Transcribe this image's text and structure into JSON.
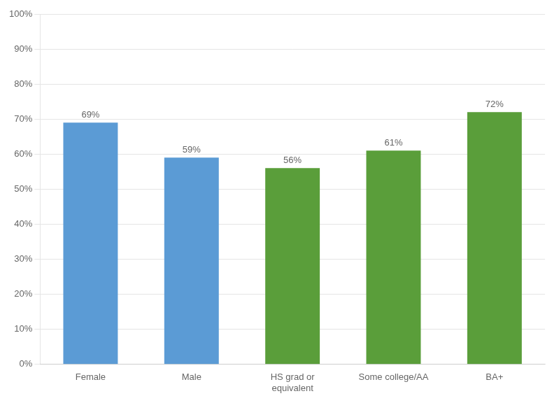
{
  "chart_data": {
    "type": "bar",
    "categories": [
      "Female",
      "Male",
      "HS grad or\nequivalent",
      "Some college/AA",
      "BA+"
    ],
    "values": [
      69,
      59,
      56,
      61,
      72
    ],
    "value_labels": [
      "69%",
      "59%",
      "56%",
      "61%",
      "72%"
    ],
    "colors": [
      "#5b9bd5",
      "#5b9bd5",
      "#5a9e3a",
      "#5a9e3a",
      "#5a9e3a"
    ],
    "data_labels": true,
    "ylim": [
      0,
      100
    ],
    "yticks": [
      {
        "value": 0,
        "label": "0%"
      },
      {
        "value": 10,
        "label": "10%"
      },
      {
        "value": 20,
        "label": "20%"
      },
      {
        "value": 30,
        "label": "30%"
      },
      {
        "value": 40,
        "label": "40%"
      },
      {
        "value": 50,
        "label": "50%"
      },
      {
        "value": 60,
        "label": "60%"
      },
      {
        "value": 70,
        "label": "70%"
      },
      {
        "value": 80,
        "label": "80%"
      },
      {
        "value": 90,
        "label": "90%"
      },
      {
        "value": 100,
        "label": "100%"
      }
    ],
    "grid": true
  }
}
